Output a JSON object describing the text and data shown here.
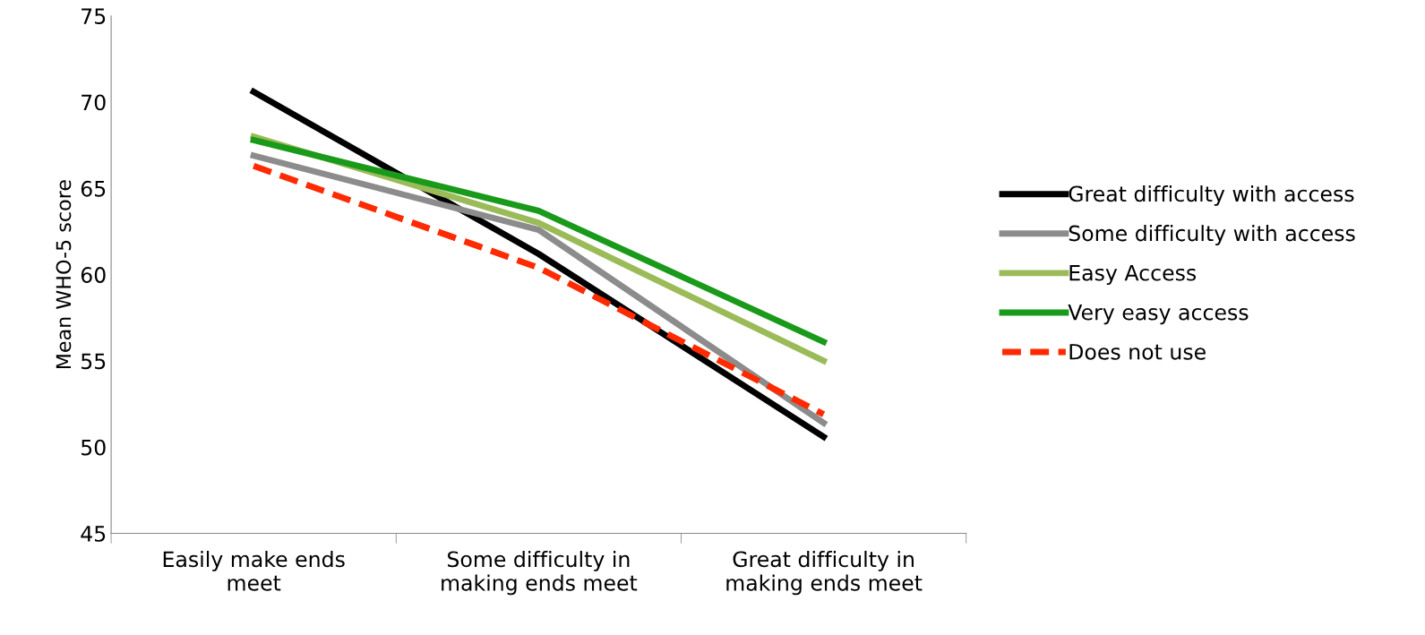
{
  "chart_data": {
    "type": "line",
    "ylabel": "Mean WHO-5 score",
    "categories": [
      "Easily make ends\nmeet",
      "Some difficulty in\nmaking ends meet",
      "Great difficulty in\nmaking ends meet"
    ],
    "series": [
      {
        "name": "Great difficulty with access",
        "color": "#000000",
        "values": [
          70.6,
          61.2,
          50.6
        ]
      },
      {
        "name": "Some difficulty with access",
        "color": "#8c8c8c",
        "values": [
          66.9,
          62.6,
          51.4
        ]
      },
      {
        "name": "Easy Access",
        "color": "#9bbb59",
        "values": [
          68.0,
          63.0,
          55.0
        ]
      },
      {
        "name": "Very easy access",
        "color": "#1a9a1a",
        "values": [
          67.8,
          63.7,
          56.1
        ]
      },
      {
        "name": "Does not use",
        "color": "#ff2a00",
        "values": [
          66.3,
          60.4,
          51.9
        ],
        "line_style": "dashed"
      }
    ],
    "ylim": [
      45,
      75
    ],
    "yticks": [
      45,
      50,
      55,
      60,
      65,
      70,
      75
    ],
    "legend": "right",
    "grid": false,
    "marker": "none"
  }
}
